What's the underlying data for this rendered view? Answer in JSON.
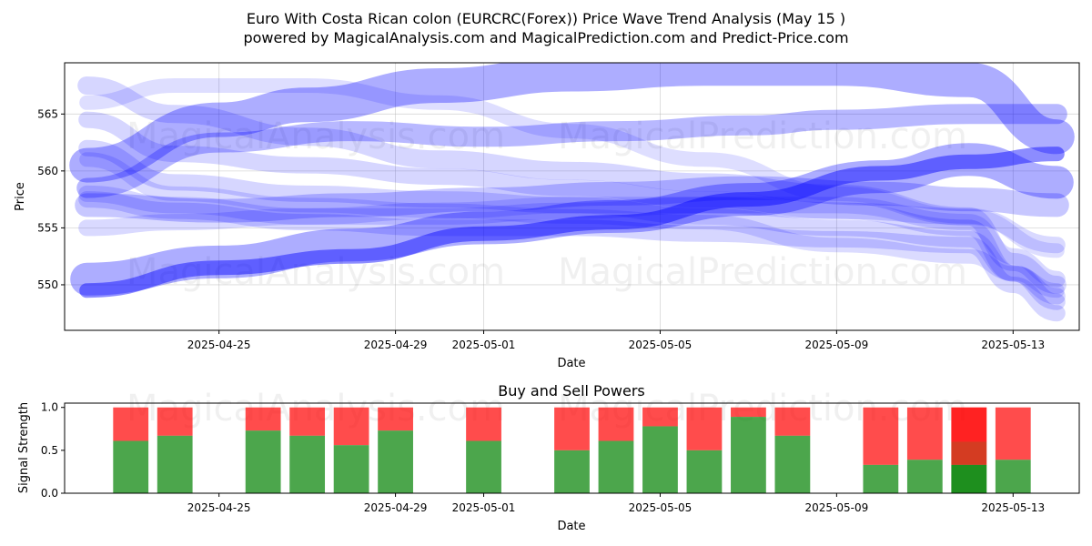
{
  "header": {
    "title": "Euro With Costa Rican colon (EURCRC(Forex)) Price Wave Trend Analysis (May 15 )",
    "subtitle": "powered by MagicalAnalysis.com and MagicalPrediction.com and Predict-Price.com"
  },
  "watermarks": [
    "MagicalAnalysis.com",
    "MagicalPrediction.com"
  ],
  "colors": {
    "wave": "#0000ff",
    "buy": "#008000",
    "sell": "#ff0000"
  },
  "chart_data": [
    {
      "type": "line",
      "xlabel": "Date",
      "ylabel": "Price",
      "x_range": [
        "2025-04-21T12:00",
        "2025-05-14T12:00"
      ],
      "ylim": [
        546,
        569.5
      ],
      "y_ticks": [
        550,
        555,
        560,
        565
      ],
      "x_ticks": [
        "2025-04-25",
        "2025-04-29",
        "2025-05-01",
        "2025-05-05",
        "2025-05-09",
        "2025-05-13"
      ],
      "grid": true,
      "bands": [
        {
          "x": [
            "2025-04-22",
            "2025-04-25",
            "2025-04-27",
            "2025-04-30",
            "2025-05-03",
            "2025-05-06",
            "2025-05-09",
            "2025-05-12",
            "2025-05-14"
          ],
          "y": [
            560.5,
            564.5,
            565.8,
            567.5,
            568.5,
            569,
            569,
            568,
            563
          ],
          "width": 38,
          "opacity": 0.32
        },
        {
          "x": [
            "2025-04-22",
            "2025-04-25",
            "2025-04-28",
            "2025-05-01",
            "2025-05-04",
            "2025-05-07",
            "2025-05-10",
            "2025-05-12",
            "2025-05-14"
          ],
          "y": [
            550.5,
            552,
            553.5,
            555,
            556,
            557.5,
            559.5,
            561,
            559
          ],
          "width": 36,
          "opacity": 0.32
        },
        {
          "x": [
            "2025-04-22",
            "2025-04-25",
            "2025-04-28",
            "2025-05-01",
            "2025-05-04",
            "2025-05-07",
            "2025-05-10",
            "2025-05-12",
            "2025-05-14"
          ],
          "y": [
            549.5,
            551.5,
            552.5,
            554.5,
            555.5,
            557.5,
            559.8,
            560.8,
            561.5
          ],
          "width": 16,
          "opacity": 0.45
        },
        {
          "x": [
            "2025-04-22",
            "2025-04-25",
            "2025-04-28",
            "2025-05-01",
            "2025-05-04",
            "2025-05-07",
            "2025-05-09",
            "2025-05-12",
            "2025-05-14"
          ],
          "y": [
            558.5,
            562.5,
            563.5,
            563,
            563.5,
            564,
            564.5,
            565,
            565
          ],
          "width": 22,
          "opacity": 0.28
        },
        {
          "x": [
            "2025-04-22",
            "2025-04-25",
            "2025-04-28",
            "2025-05-01",
            "2025-05-04",
            "2025-05-07",
            "2025-05-10",
            "2025-05-12",
            "2025-05-14"
          ],
          "y": [
            557,
            556.5,
            557,
            557.5,
            558,
            558.5,
            558,
            557.5,
            557
          ],
          "width": 26,
          "opacity": 0.22
        },
        {
          "x": [
            "2025-04-22",
            "2025-04-24",
            "2025-04-27",
            "2025-04-30",
            "2025-05-03",
            "2025-05-06",
            "2025-05-09",
            "2025-05-12",
            "2025-05-13",
            "2025-05-14"
          ],
          "y": [
            567.5,
            565,
            563,
            561,
            560,
            559,
            558,
            556,
            552,
            550
          ],
          "width": 20,
          "opacity": 0.16
        },
        {
          "x": [
            "2025-04-22",
            "2025-04-24",
            "2025-04-27",
            "2025-04-30",
            "2025-05-03",
            "2025-05-06",
            "2025-05-09",
            "2025-05-12",
            "2025-05-13",
            "2025-05-14"
          ],
          "y": [
            564.5,
            561.5,
            560.5,
            559.5,
            558.5,
            557.5,
            556.5,
            555,
            551,
            549
          ],
          "width": 18,
          "opacity": 0.16
        },
        {
          "x": [
            "2025-04-22",
            "2025-04-24",
            "2025-04-27",
            "2025-04-30",
            "2025-05-03",
            "2025-05-06",
            "2025-05-09",
            "2025-05-12",
            "2025-05-13",
            "2025-05-14"
          ],
          "y": [
            562,
            559,
            558,
            557.5,
            557,
            556,
            555,
            554,
            551,
            548.5
          ],
          "width": 18,
          "opacity": 0.16
        },
        {
          "x": [
            "2025-04-22",
            "2025-04-24",
            "2025-04-27",
            "2025-04-30",
            "2025-05-03",
            "2025-05-06",
            "2025-05-09",
            "2025-05-12",
            "2025-05-13",
            "2025-05-14"
          ],
          "y": [
            557.5,
            556.5,
            555.5,
            555,
            555,
            554.5,
            554,
            553.5,
            550,
            547.5
          ],
          "width": 18,
          "opacity": 0.16
        },
        {
          "x": [
            "2025-04-22",
            "2025-04-24",
            "2025-04-27",
            "2025-04-30",
            "2025-05-03",
            "2025-05-06",
            "2025-05-09",
            "2025-05-12",
            "2025-05-14"
          ],
          "y": [
            566,
            567.5,
            567.5,
            566,
            563.5,
            561,
            558,
            556,
            553
          ],
          "width": 16,
          "opacity": 0.13
        },
        {
          "x": [
            "2025-04-22",
            "2025-04-24",
            "2025-04-27",
            "2025-04-30",
            "2025-05-03",
            "2025-05-06",
            "2025-05-09",
            "2025-05-12",
            "2025-05-13",
            "2025-05-14"
          ],
          "y": [
            561,
            558,
            557,
            556.5,
            556,
            555.5,
            553.5,
            552.5,
            551,
            549.5
          ],
          "width": 16,
          "opacity": 0.14
        },
        {
          "x": [
            "2025-04-22",
            "2025-04-24",
            "2025-04-27",
            "2025-04-30",
            "2025-05-03",
            "2025-05-06",
            "2025-05-09",
            "2025-05-12",
            "2025-05-14"
          ],
          "y": [
            555,
            555.5,
            556,
            556.5,
            557,
            557,
            556.5,
            556,
            553.5
          ],
          "width": 18,
          "opacity": 0.15
        },
        {
          "x": [
            "2025-04-22",
            "2025-04-24",
            "2025-04-27",
            "2025-04-30",
            "2025-05-03",
            "2025-05-06",
            "2025-05-09",
            "2025-05-12",
            "2025-05-13",
            "2025-05-14"
          ],
          "y": [
            558,
            557,
            556,
            556,
            556.5,
            557,
            557,
            555.5,
            552.5,
            550.5
          ],
          "width": 18,
          "opacity": 0.15
        }
      ]
    },
    {
      "type": "bar",
      "title": "Buy and Sell Powers",
      "xlabel": "Date",
      "ylabel": "Signal Strength",
      "ylim": [
        0,
        1.05
      ],
      "y_ticks": [
        "0.0",
        "0.5",
        "1.0"
      ],
      "x_ticks": [
        "2025-04-25",
        "2025-04-29",
        "2025-05-01",
        "2025-05-05",
        "2025-05-09",
        "2025-05-13"
      ],
      "series": [
        {
          "name": "Buy",
          "color": "#008000"
        },
        {
          "name": "Sell",
          "color": "#ff0000"
        }
      ],
      "bars": [
        {
          "date": "2025-04-23",
          "buy": 0.61
        },
        {
          "date": "2025-04-24",
          "buy": 0.67
        },
        {
          "date": "2025-04-26",
          "buy": 0.73
        },
        {
          "date": "2025-04-27",
          "buy": 0.67
        },
        {
          "date": "2025-04-28",
          "buy": 0.56
        },
        {
          "date": "2025-04-29",
          "buy": 0.73
        },
        {
          "date": "2025-05-01",
          "buy": 0.61
        },
        {
          "date": "2025-05-03",
          "buy": 0.5
        },
        {
          "date": "2025-05-04",
          "buy": 0.61
        },
        {
          "date": "2025-05-05",
          "buy": 0.78
        },
        {
          "date": "2025-05-06",
          "buy": 0.5
        },
        {
          "date": "2025-05-07",
          "buy": 0.89
        },
        {
          "date": "2025-05-08",
          "buy": 0.67
        },
        {
          "date": "2025-05-10",
          "buy": 0.33
        },
        {
          "date": "2025-05-11",
          "buy": 0.39
        },
        {
          "date": "2025-05-12",
          "buy": 0.33,
          "highlight": true
        },
        {
          "date": "2025-05-13",
          "buy": 0.39
        }
      ]
    }
  ]
}
